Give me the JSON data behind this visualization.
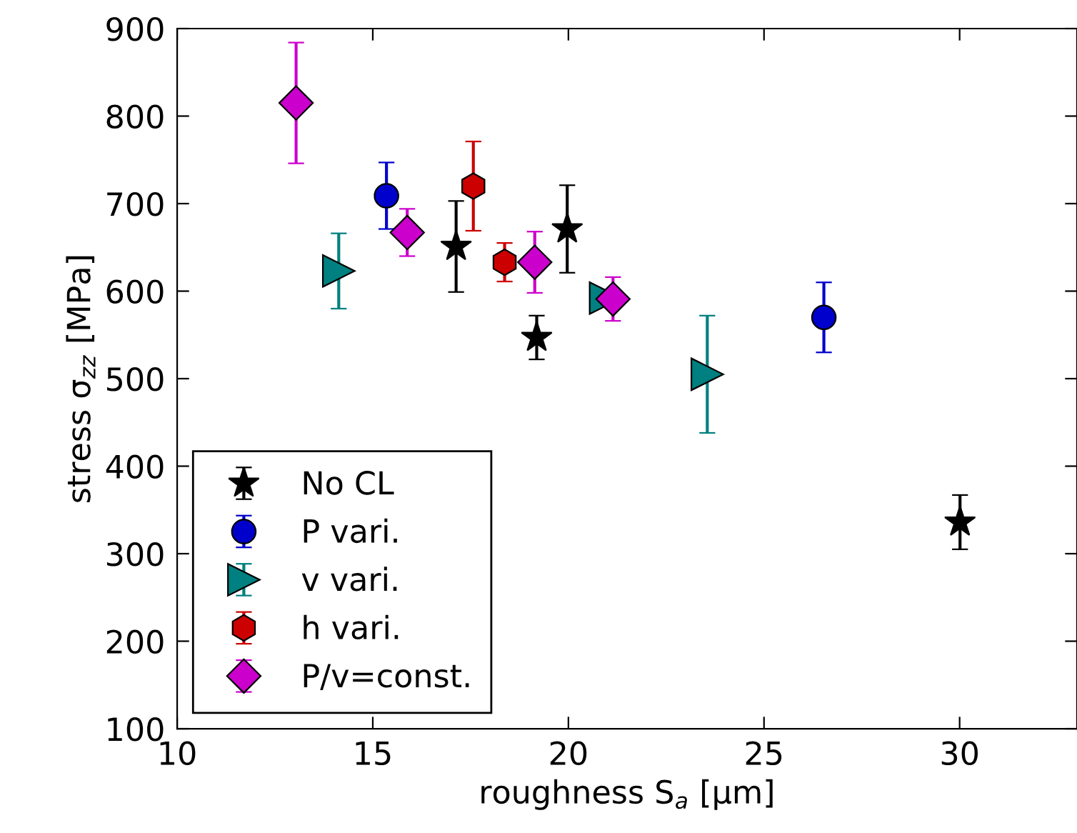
{
  "chart_data": {
    "type": "scatter",
    "xlabel": "roughness S$_{a}$ [μm]",
    "ylabel": "stress σ$_{zz}$ [MPa]",
    "xlim": [
      10,
      33
    ],
    "xticks": [
      10,
      15,
      20,
      25,
      30
    ],
    "ylim": [
      100,
      900
    ],
    "yticks": [
      100,
      200,
      300,
      400,
      500,
      600,
      700,
      800,
      900
    ],
    "grid": false,
    "legend": "bottom left",
    "series": [
      {
        "name": "No CL",
        "color": "#000000",
        "marker": "star",
        "x": [
          17.13,
          19.19,
          19.97,
          30.01
        ],
        "values": [
          651,
          547,
          671,
          336
        ],
        "errors": [
          52,
          25,
          50,
          31
        ]
      },
      {
        "name": "P vari.",
        "color": "#0000cc",
        "marker": "circle",
        "x": [
          15.35,
          26.53
        ],
        "values": [
          709,
          570
        ],
        "errors": [
          38,
          40
        ]
      },
      {
        "name": "v vari.",
        "color": "#008080",
        "marker": "triangle",
        "x": [
          14.13,
          20.95,
          23.55
        ],
        "values": [
          623,
          592,
          505
        ],
        "errors": [
          43,
          null,
          67
        ]
      },
      {
        "name": "h vari.",
        "color": "#cc0000",
        "x": [
          17.57,
          18.37
        ],
        "values": [
          720,
          633
        ],
        "errors": [
          51,
          22
        ]
      },
      {
        "name": "P/v=const.",
        "color": "#cc00cc",
        "marker": "diamond",
        "x": [
          13.04,
          15.88,
          19.14,
          21.14
        ],
        "values": [
          815,
          667,
          633,
          591
        ],
        "errors": [
          69,
          27,
          35,
          25
        ]
      }
    ]
  }
}
